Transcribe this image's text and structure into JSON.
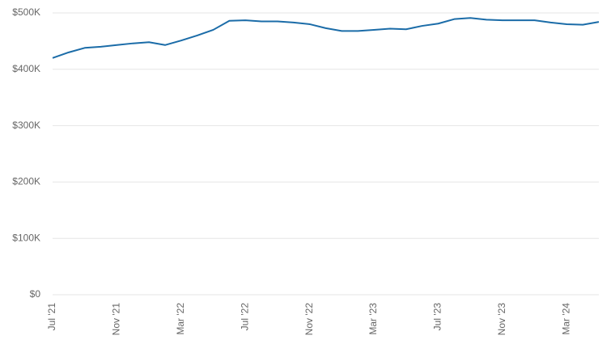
{
  "chart_data": {
    "type": "line",
    "categories": [
      "Jul '21",
      null,
      null,
      null,
      "Nov '21",
      null,
      null,
      null,
      "Mar '22",
      null,
      null,
      null,
      "Jul '22",
      null,
      null,
      null,
      "Nov '22",
      null,
      null,
      null,
      "Mar '23",
      null,
      null,
      null,
      "Jul '23",
      null,
      null,
      null,
      "Nov '23",
      null,
      null,
      null,
      "Mar '24",
      null,
      null
    ],
    "series": [
      {
        "color": "#1b6ca8",
        "values": [
          420000,
          430000,
          438000,
          440000,
          443000,
          446000,
          448000,
          443000,
          451000,
          460000,
          470000,
          486000,
          487000,
          485000,
          485000,
          483000,
          480000,
          473000,
          468000,
          468000,
          470000,
          472000,
          471000,
          477000,
          481000,
          489000,
          491000,
          488000,
          487000,
          487000,
          487000,
          483000,
          480000,
          479000,
          484000
        ]
      }
    ],
    "ylim": [
      0,
      500000
    ],
    "yticks": [
      {
        "value": 0,
        "label": "$0"
      },
      {
        "value": 100000,
        "label": "$100K"
      },
      {
        "value": 200000,
        "label": "$200K"
      },
      {
        "value": 300000,
        "label": "$300K"
      },
      {
        "value": 400000,
        "label": "$400K"
      },
      {
        "value": 500000,
        "label": "$500K"
      }
    ],
    "grid": true
  }
}
